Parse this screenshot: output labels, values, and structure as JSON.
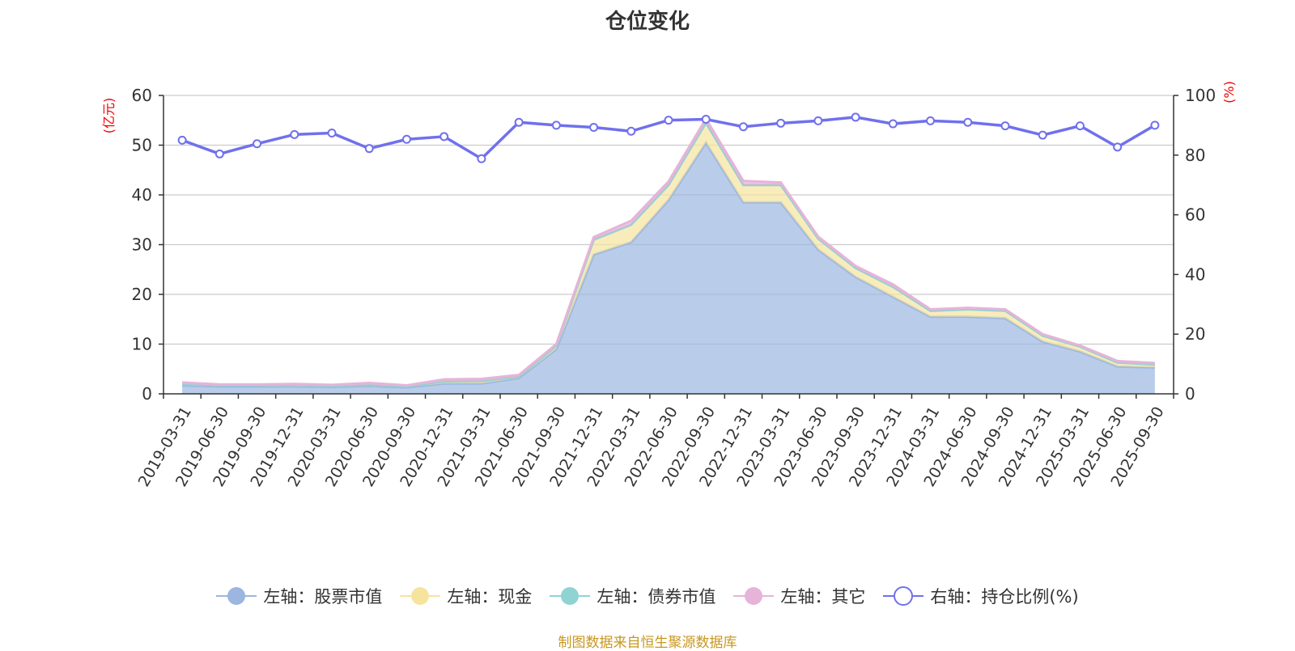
{
  "title": "仓位变化",
  "source": "制图数据来自恒生聚源数据库",
  "colors": {
    "stock": "#9bb6e0",
    "cash": "#f6e49e",
    "bond": "#8fd3d3",
    "other": "#e7b3d9",
    "ratio": "#7070ee",
    "unit": "#ee0000",
    "axis": "#333333",
    "grid": "#cccccc"
  },
  "legend": [
    {
      "label": "左轴：股票市值",
      "series": "stock",
      "marker": "filled-circle"
    },
    {
      "label": "左轴：现金",
      "series": "cash",
      "marker": "filled-circle"
    },
    {
      "label": "左轴：债券市值",
      "series": "bond",
      "marker": "filled-circle"
    },
    {
      "label": "左轴：其它",
      "series": "other",
      "marker": "filled-circle"
    },
    {
      "label": "右轴：持仓比例(%)",
      "series": "ratio",
      "marker": "hollow-circle"
    }
  ],
  "chart_data": {
    "type": "area",
    "title": "仓位变化",
    "categories": [
      "2019-03-31",
      "2019-06-30",
      "2019-09-30",
      "2019-12-31",
      "2020-03-31",
      "2020-06-30",
      "2020-09-30",
      "2020-12-31",
      "2021-03-31",
      "2021-06-30",
      "2021-09-30",
      "2021-12-31",
      "2022-03-31",
      "2022-06-30",
      "2022-09-30",
      "2022-12-31",
      "2023-03-31",
      "2023-06-30",
      "2023-09-30",
      "2023-12-31",
      "2024-03-31",
      "2024-06-30",
      "2024-09-30",
      "2024-12-31",
      "2025-03-31",
      "2025-06-30",
      "2025-09-30"
    ],
    "left_axis": {
      "label": "(亿元)",
      "range": [
        0,
        60
      ],
      "ticks": [
        0,
        10,
        20,
        30,
        40,
        50,
        60
      ]
    },
    "right_axis": {
      "label": "(%)",
      "range": [
        0,
        100
      ],
      "ticks": [
        0,
        20,
        40,
        60,
        80,
        100
      ]
    },
    "series": [
      {
        "name": "左轴：股票市值",
        "key": "stock",
        "axis": "left",
        "stacked": true,
        "values": [
          1.7,
          1.5,
          1.5,
          1.5,
          1.4,
          1.6,
          1.3,
          2.1,
          2.1,
          3.2,
          9.0,
          28.0,
          30.5,
          39.0,
          50.5,
          38.5,
          38.5,
          29.0,
          23.5,
          19.5,
          15.5,
          15.5,
          15.2,
          10.5,
          8.5,
          5.5,
          5.3
        ]
      },
      {
        "name": "左轴：现金",
        "key": "cash",
        "axis": "left",
        "stacked": true,
        "values": [
          0.3,
          0.2,
          0.2,
          0.3,
          0.2,
          0.3,
          0.2,
          0.4,
          0.5,
          0.3,
          0.7,
          3.0,
          3.5,
          3.0,
          4.0,
          3.5,
          3.5,
          2.2,
          1.8,
          2.0,
          1.2,
          1.5,
          1.5,
          1.2,
          1.0,
          0.8,
          0.6
        ]
      },
      {
        "name": "左轴：债券市值",
        "key": "bond",
        "axis": "left",
        "stacked": true,
        "values": [
          0,
          0,
          0,
          0,
          0,
          0,
          0,
          0,
          0,
          0,
          0,
          0,
          0,
          0,
          0,
          0,
          0,
          0,
          0,
          0,
          0,
          0,
          0,
          0,
          0,
          0,
          0
        ]
      },
      {
        "name": "左轴：其它",
        "key": "other",
        "axis": "left",
        "stacked": true,
        "values": [
          0.3,
          0.2,
          0.2,
          0.2,
          0.2,
          0.3,
          0.2,
          0.4,
          0.4,
          0.3,
          0.3,
          0.5,
          0.8,
          0.7,
          0.8,
          0.8,
          0.5,
          0.4,
          0.4,
          0.5,
          0.3,
          0.3,
          0.3,
          0.3,
          0.2,
          0.3,
          0.3
        ]
      },
      {
        "name": "右轴：持仓比例(%)",
        "key": "ratio",
        "axis": "right",
        "type": "line",
        "values": [
          85.0,
          80.4,
          83.8,
          86.9,
          87.4,
          82.2,
          85.3,
          86.2,
          78.8,
          91.0,
          90.0,
          89.3,
          88.0,
          91.7,
          92.0,
          89.5,
          90.7,
          91.5,
          92.7,
          90.5,
          91.5,
          91.0,
          89.8,
          86.7,
          89.8,
          82.7,
          90.0
        ]
      }
    ]
  }
}
